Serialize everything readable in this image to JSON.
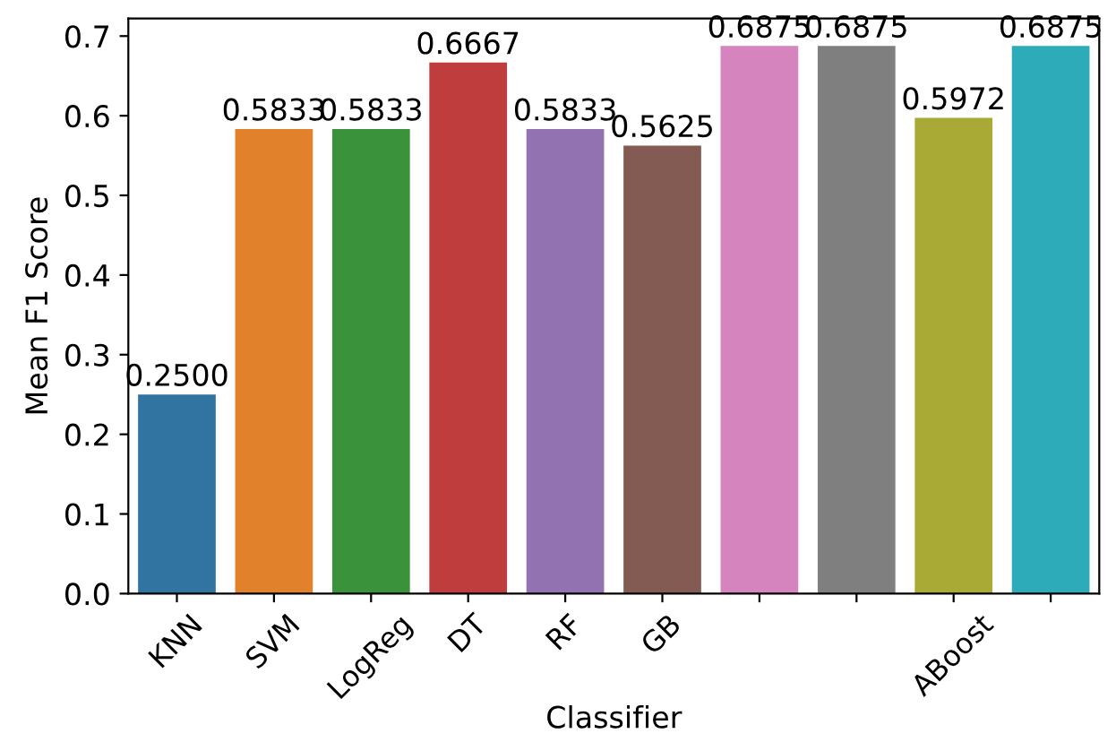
{
  "chart_data": {
    "type": "bar",
    "xlabel": "Classifier",
    "ylabel": "Mean F1 Score",
    "categories": [
      "KNN",
      "SVM",
      "LogReg",
      "DT",
      "RF",
      "GB",
      null,
      null,
      "ABoost",
      null
    ],
    "values": [
      0.25,
      0.5833,
      0.5833,
      0.6667,
      0.5833,
      0.5625,
      0.6875,
      0.6875,
      0.5972,
      0.6875
    ],
    "value_labels": [
      "0.2500",
      "0.5833",
      "0.5833",
      "0.6667",
      "0.5833",
      "0.5625",
      "0.6875",
      "0.6875",
      "0.5972",
      "0.6875"
    ],
    "colors": [
      "#3274a1",
      "#e1812c",
      "#3a923a",
      "#c03d3e",
      "#9372b2",
      "#845b53",
      "#d684bd",
      "#7f7f7f",
      "#a9aa35",
      "#2eabb8"
    ],
    "ylim": [
      0,
      0.722
    ],
    "yticks": [
      {
        "value": 0,
        "label": "0.0"
      },
      {
        "value": 0.1,
        "label": "0.1"
      },
      {
        "value": 0.2,
        "label": "0.2"
      },
      {
        "value": 0.3,
        "label": "0.3"
      },
      {
        "value": 0.4,
        "label": "0.4"
      },
      {
        "value": 0.5,
        "label": "0.5"
      },
      {
        "value": 0.6,
        "label": "0.6"
      },
      {
        "value": 0.7,
        "label": "0.7"
      }
    ],
    "grid": false
  }
}
